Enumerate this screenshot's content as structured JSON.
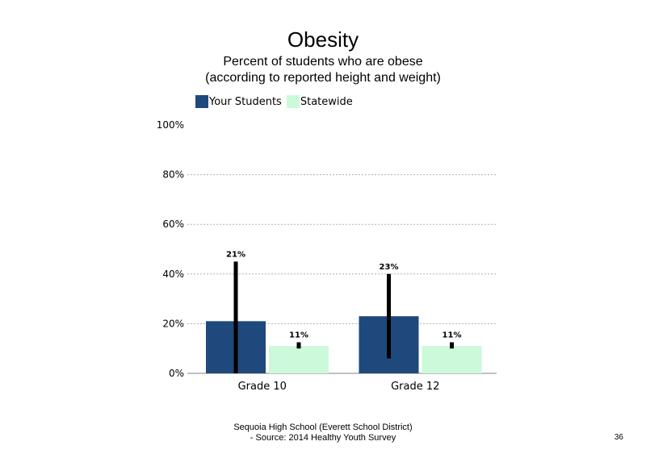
{
  "chart_data": {
    "type": "bar",
    "title": "Obesity",
    "subtitle": "Percent of students who are obese (according to reported height and weight)",
    "categories": [
      "Grade 10",
      "Grade 12"
    ],
    "series": [
      {
        "name": "Your Students",
        "color": "#1f497d",
        "values": [
          21,
          23
        ],
        "error_low": [
          0,
          6
        ],
        "error_high": [
          45,
          40
        ],
        "labels": [
          "21%",
          "23%"
        ]
      },
      {
        "name": "Statewide",
        "color": "#ccf9d9",
        "values": [
          11,
          11
        ],
        "error_low": [
          10,
          10
        ],
        "error_high": [
          12.5,
          12.5
        ],
        "labels": [
          "11%",
          "11%"
        ]
      }
    ],
    "ylim": [
      0,
      100
    ],
    "yticks": [
      0,
      20,
      40,
      60,
      80,
      100
    ],
    "ytick_labels": [
      "0%",
      "20%",
      "40%",
      "60%",
      "80%",
      "100%"
    ],
    "grid": true,
    "legend_position": "top-left",
    "xlabel": "",
    "ylabel": ""
  },
  "footer": {
    "line1": "Sequoia High School (Everett School District)",
    "line2": "- Source: 2014 Healthy Youth Survey"
  },
  "page_number": "36"
}
